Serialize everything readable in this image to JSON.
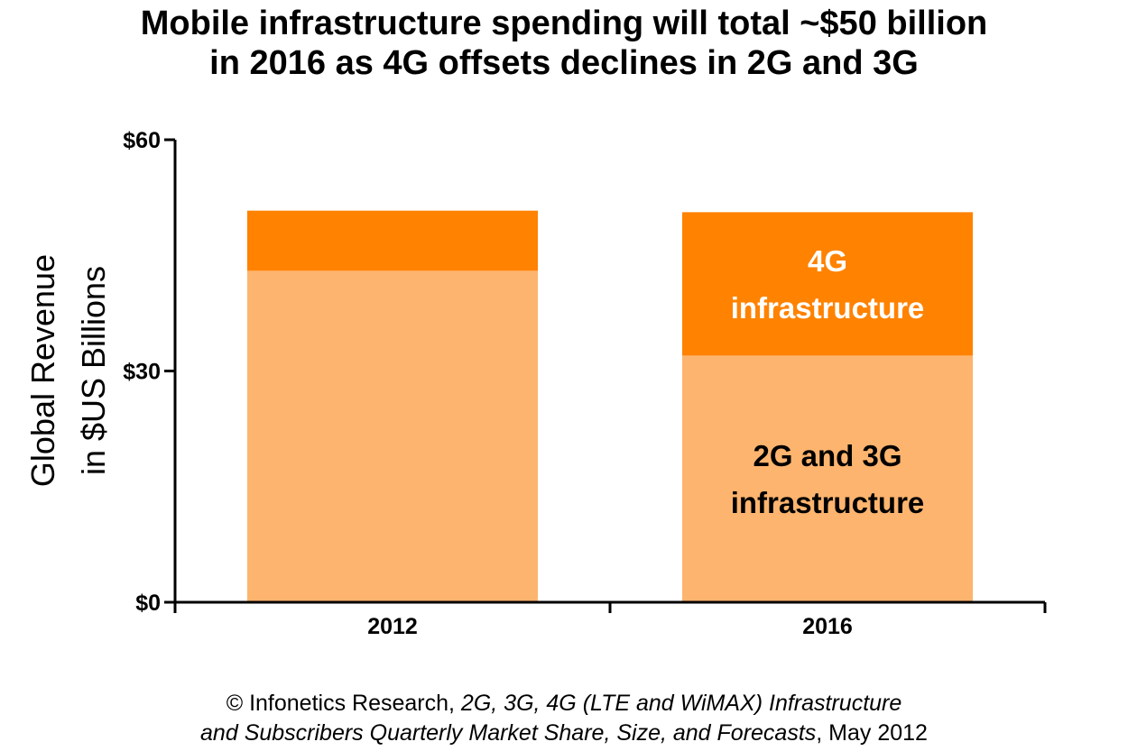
{
  "chart_data": {
    "type": "bar",
    "stacked": true,
    "title_lines": [
      "Mobile infrastructure spending will total ~$50 billion",
      "in 2016 as 4G offsets declines in 2G and 3G"
    ],
    "ylabel_lines": [
      "Global Revenue",
      "in $US Billions"
    ],
    "xlabel": "",
    "categories": [
      "2012",
      "2016"
    ],
    "ylim": [
      0,
      60
    ],
    "yticks": [
      "$0",
      "$30",
      "$60"
    ],
    "ytick_values": [
      0,
      30,
      60
    ],
    "grid": false,
    "legend": "none",
    "series": [
      {
        "name": "2G and 3G infrastructure",
        "label_lines": [
          "",
          "2G and 3G",
          "infrastructure"
        ],
        "label_bar_index": 1,
        "values": [
          43,
          32
        ],
        "color": "#FDB46E",
        "label_color": "#000000"
      },
      {
        "name": "4G infrastructure",
        "label_lines": [
          "4G",
          "infrastructure"
        ],
        "label_bar_index": 1,
        "values": [
          7.8,
          18.6
        ],
        "color": "#FF8200",
        "label_color": "#FFFFFF"
      }
    ]
  },
  "source": {
    "line1_prefix": "© Infonetics Research, ",
    "line1_italic": "2G, 3G, 4G (LTE and WiMAX) Infrastructure",
    "line2_italic": "and Subscribers Quarterly Market Share, Size, and Forecasts",
    "line2_suffix": ", May 2012"
  }
}
